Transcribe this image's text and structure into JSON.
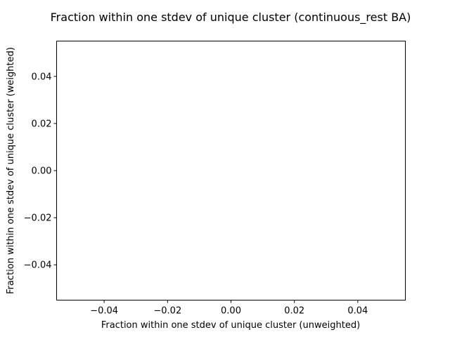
{
  "chart_data": {
    "type": "scatter",
    "title": "Fraction within one stdev of unique cluster (continuous_rest BA)",
    "xlabel": "Fraction within one stdev of unique cluster (unweighted)",
    "ylabel": "Fraction within one stdev of unique cluster (weighted)",
    "xlim": [
      -0.055,
      0.055
    ],
    "ylim": [
      -0.055,
      0.055
    ],
    "x_ticks": [
      -0.04,
      -0.02,
      0.0,
      0.02,
      0.04
    ],
    "x_tick_labels": [
      "−0.04",
      "−0.02",
      "0.00",
      "0.02",
      "0.04"
    ],
    "y_ticks": [
      -0.04,
      -0.02,
      0.0,
      0.02,
      0.04
    ],
    "y_tick_labels": [
      "−0.04",
      "−0.02",
      "0.00",
      "0.02",
      "0.04"
    ],
    "grid": false,
    "series": [
      {
        "x": [],
        "y": []
      }
    ]
  }
}
